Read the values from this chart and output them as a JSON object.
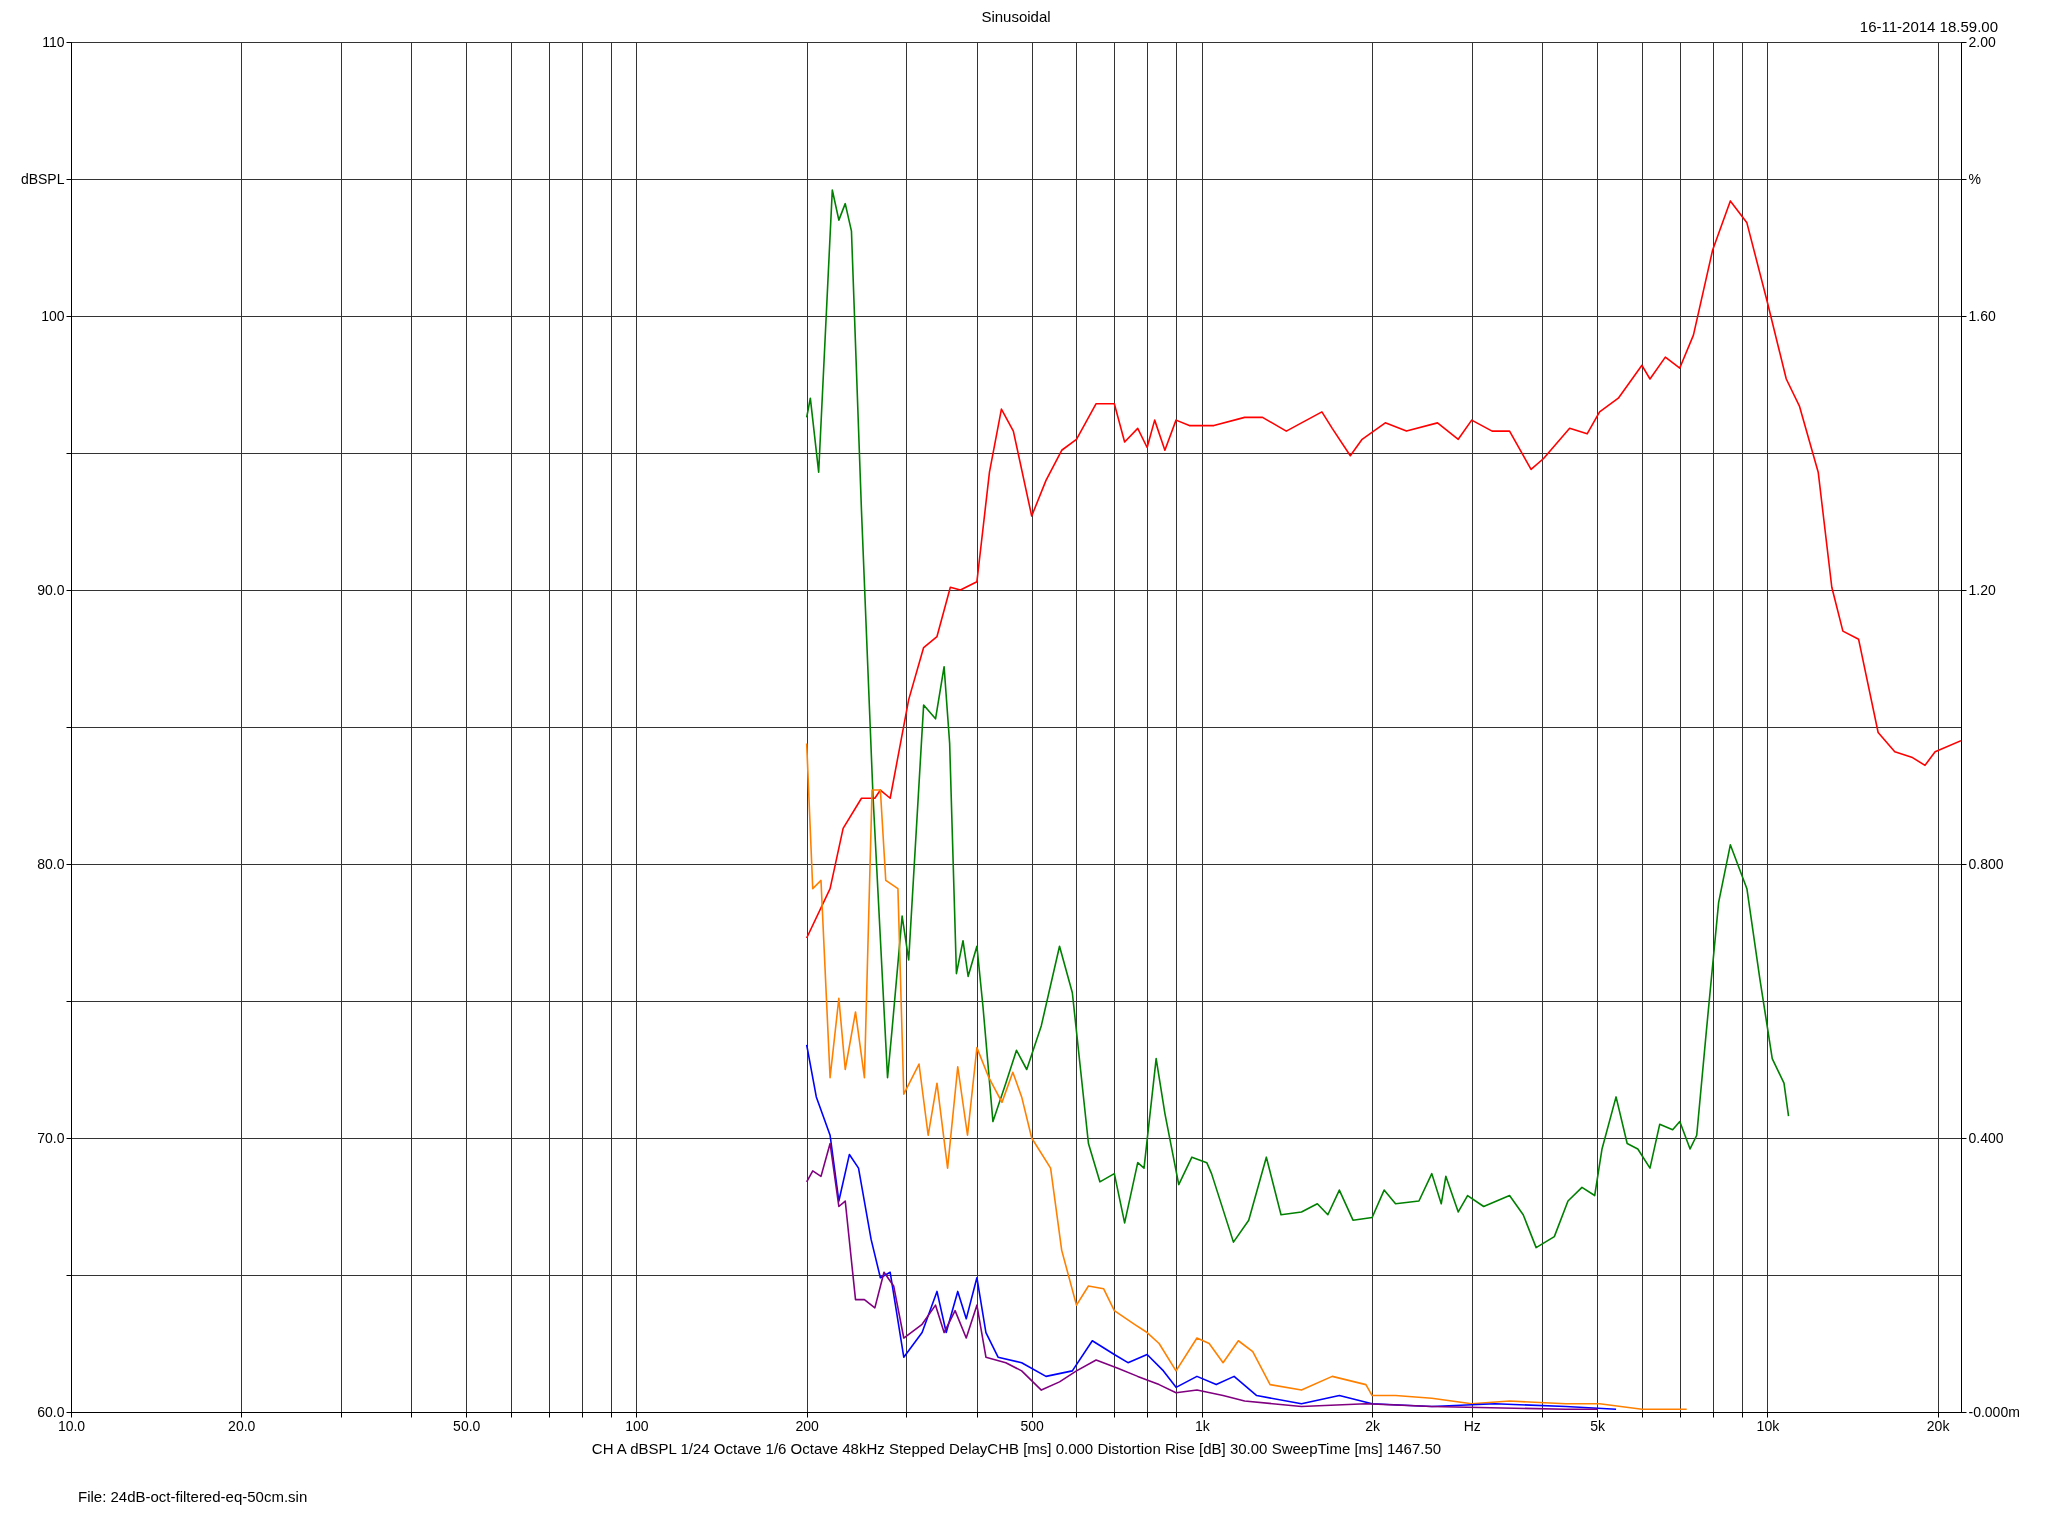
{
  "chart_data": {
    "type": "line",
    "title": "Sinusoidal",
    "xlabel": "CH A   dBSPL   1/24 Octave   1/6 Octave   48kHz   Stepped   DelayCHB [ms] 0.000   Distortion Rise [dB] 30.00   SweepTime [ms] 1467.50",
    "annotations": [
      "16-11-2014 18.59.00",
      "File: 24dB-oct-filtered-eq-50cm.sin"
    ],
    "log": "x",
    "grid": true,
    "legend": false,
    "marker": "none",
    "line_style": "solid",
    "xlim": [
      10,
      22000
    ],
    "xticks": [
      {
        "value": 10,
        "label": "10.0"
      },
      {
        "value": 20,
        "label": "20.0"
      },
      {
        "value": 30,
        "label": null
      },
      {
        "value": 40,
        "label": null
      },
      {
        "value": 50,
        "label": "50.0"
      },
      {
        "value": 60,
        "label": null
      },
      {
        "value": 70,
        "label": null
      },
      {
        "value": 80,
        "label": null
      },
      {
        "value": 90,
        "label": null
      },
      100,
      200,
      {
        "value": 300,
        "label": null
      },
      {
        "value": 400,
        "label": null
      },
      500,
      {
        "value": 600,
        "label": null
      },
      {
        "value": 700,
        "label": null
      },
      {
        "value": 800,
        "label": null
      },
      {
        "value": 900,
        "label": null
      },
      {
        "value": 1000,
        "label": "1k"
      },
      {
        "value": 2000,
        "label": "2k"
      },
      {
        "value": 3000,
        "label": "Hz"
      },
      {
        "value": 4000,
        "label": null
      },
      {
        "value": 5000,
        "label": "5k"
      },
      {
        "value": 6000,
        "label": null
      },
      {
        "value": 7000,
        "label": null
      },
      {
        "value": 8000,
        "label": null
      },
      {
        "value": 9000,
        "label": null
      },
      {
        "value": 10000,
        "label": "10k"
      },
      {
        "value": 20000,
        "label": "20k"
      }
    ],
    "ylim": [
      60,
      110
    ],
    "yticks": [
      {
        "value": 60,
        "label": "60.0"
      },
      {
        "value": 65,
        "label": null
      },
      {
        "value": 70,
        "label": "70.0"
      },
      {
        "value": 75,
        "label": null
      },
      {
        "value": 80,
        "label": "80.0"
      },
      {
        "value": 85,
        "label": null
      },
      {
        "value": 90,
        "label": "90.0"
      },
      {
        "value": 95,
        "label": null
      },
      100,
      {
        "value": 105,
        "label": "dBSPL"
      },
      110
    ],
    "y2lim": [
      0,
      2
    ],
    "y2ticks": [
      {
        "value": 0,
        "label": "-0.000m"
      },
      {
        "value": 0.4,
        "label": "0.400"
      },
      {
        "value": 0.8,
        "label": "0.800"
      },
      {
        "value": 1.2,
        "label": "1.20"
      },
      {
        "value": 1.6,
        "label": "1.60"
      },
      {
        "value": 1.8,
        "label": "%"
      },
      {
        "value": 2,
        "label": "2.00"
      }
    ],
    "series": [
      {
        "color": "#ff0000",
        "x": [
          200,
          220,
          232,
          250,
          264,
          270,
          281,
          303,
          322,
          340,
          359,
          374,
          400,
          421,
          442,
          464,
          500,
          530,
          565,
          600,
          650,
          700,
          730,
          770,
          800,
          825,
          860,
          900,
          950,
          1050,
          1190,
          1280,
          1410,
          1630,
          1700,
          1830,
          1920,
          2110,
          2300,
          2610,
          2840,
          3000,
          3260,
          3500,
          3820,
          4020,
          4470,
          4800,
          5050,
          5450,
          6000,
          6200,
          6600,
          7000,
          7400,
          8000,
          8600,
          9200,
          10000,
          10800,
          11400,
          12300,
          13000,
          13600,
          14500,
          15700,
          16800,
          18000,
          19000,
          19800,
          22000
        ],
        "values": [
          77.3,
          79.1,
          81.3,
          82.4,
          82.4,
          82.7,
          82.4,
          86.0,
          87.9,
          88.3,
          90.1,
          90.0,
          90.3,
          94.3,
          96.6,
          95.8,
          92.7,
          94.0,
          95.1,
          95.5,
          96.8,
          96.8,
          95.4,
          95.9,
          95.2,
          96.2,
          95.1,
          96.2,
          96.0,
          96.0,
          96.3,
          96.3,
          95.8,
          96.5,
          95.9,
          94.9,
          95.5,
          96.1,
          95.8,
          96.1,
          95.5,
          96.2,
          95.8,
          95.8,
          94.4,
          94.8,
          95.9,
          95.7,
          96.5,
          97.0,
          98.2,
          97.7,
          98.5,
          98.1,
          99.3,
          102.4,
          104.2,
          103.4,
          100.5,
          97.7,
          96.7,
          94.3,
          90.1,
          88.5,
          88.2,
          84.8,
          84.1,
          83.9,
          83.6,
          84.1,
          84.5
        ]
      },
      {
        "color": "#008000",
        "x": [
          200,
          203,
          210,
          222,
          228,
          234,
          240,
          250,
          262,
          278,
          283,
          295,
          303,
          322,
          338,
          350,
          358,
          368,
          378,
          386,
          400,
          410,
          427,
          450,
          470,
          490,
          520,
          560,
          590,
          630,
          660,
          700,
          730,
          770,
          790,
          830,
          860,
          910,
          960,
          1020,
          1040,
          1137,
          1210,
          1300,
          1380,
          1500,
          1600,
          1670,
          1750,
          1850,
          2000,
          2100,
          2200,
          2420,
          2550,
          2650,
          2700,
          2840,
          2950,
          3150,
          3500,
          3700,
          3900,
          4200,
          4440,
          4700,
          4950,
          5100,
          5400,
          5650,
          5900,
          6200,
          6450,
          6800,
          7000,
          7300,
          7500,
          7800,
          8200,
          8600,
          9200,
          9700,
          10200,
          10700,
          10900
        ],
        "values": [
          96.3,
          97.0,
          94.3,
          104.6,
          103.5,
          104.1,
          103.1,
          92.9,
          82.5,
          72.2,
          73.9,
          78.1,
          76.5,
          85.8,
          85.3,
          87.2,
          84.4,
          76.0,
          77.2,
          75.9,
          77.0,
          74.8,
          70.6,
          72.0,
          73.2,
          72.5,
          74.1,
          77.0,
          75.3,
          69.8,
          68.4,
          68.7,
          66.9,
          69.1,
          68.9,
          72.9,
          70.9,
          68.3,
          69.3,
          69.1,
          68.7,
          66.2,
          67.0,
          69.3,
          67.2,
          67.3,
          67.6,
          67.2,
          68.1,
          67.0,
          67.1,
          68.1,
          67.6,
          67.7,
          68.7,
          67.6,
          68.6,
          67.3,
          67.9,
          67.5,
          67.9,
          67.2,
          66.0,
          66.4,
          67.7,
          68.2,
          67.9,
          69.6,
          71.5,
          69.8,
          69.6,
          68.9,
          70.5,
          70.3,
          70.6,
          69.6,
          70.1,
          73.9,
          78.6,
          80.7,
          79.1,
          75.8,
          72.9,
          72.0,
          70.8
        ]
      },
      {
        "color": "#ff8000",
        "x": [
          200,
          205,
          212,
          220,
          228,
          234,
          244,
          253,
          261,
          270,
          276,
          290,
          297,
          316,
          328,
          340,
          355,
          370,
          385,
          400,
          420,
          443,
          463,
          480,
          500,
          540,
          565,
          600,
          630,
          670,
          700,
          760,
          800,
          840,
          900,
          980,
          1030,
          1090,
          1160,
          1230,
          1320,
          1500,
          1700,
          1950,
          2000,
          2200,
          2550,
          3000,
          3500,
          4400,
          5050,
          6000,
          7200
        ],
        "values": [
          84.4,
          79.1,
          79.4,
          72.2,
          75.1,
          72.5,
          74.6,
          72.2,
          82.7,
          82.7,
          79.4,
          79.1,
          71.6,
          72.7,
          70.1,
          72.0,
          68.9,
          72.6,
          70.1,
          73.3,
          72.2,
          71.3,
          72.4,
          71.5,
          70.0,
          68.9,
          65.9,
          63.9,
          64.6,
          64.5,
          63.7,
          63.2,
          62.9,
          62.5,
          61.5,
          62.7,
          62.5,
          61.8,
          62.6,
          62.2,
          61.0,
          60.8,
          61.3,
          61.0,
          60.6,
          60.6,
          60.5,
          60.3,
          60.4,
          60.3,
          60.3,
          60.1,
          60.1
        ]
      },
      {
        "color": "#0000ff",
        "x": [
          200,
          208,
          220,
          228,
          238,
          247,
          260,
          270,
          281,
          297,
          320,
          340,
          353,
          370,
          383,
          400,
          415,
          436,
          480,
          530,
          590,
          640,
          700,
          740,
          800,
          855,
          900,
          980,
          1060,
          1140,
          1250,
          1500,
          1750,
          2000,
          2550,
          3300,
          4400,
          5400
        ],
        "values": [
          73.4,
          71.5,
          70.1,
          67.7,
          69.4,
          68.9,
          66.3,
          64.9,
          65.1,
          62.0,
          62.9,
          64.4,
          62.9,
          64.4,
          63.4,
          64.9,
          62.9,
          62.0,
          61.8,
          61.3,
          61.5,
          62.6,
          62.1,
          61.8,
          62.1,
          61.5,
          60.9,
          61.3,
          61.0,
          61.3,
          60.6,
          60.3,
          60.6,
          60.3,
          60.2,
          60.3,
          60.2,
          60.1
        ]
      },
      {
        "color": "#800080",
        "x": [
          200,
          205,
          212,
          220,
          228,
          234,
          244,
          253,
          264,
          274,
          285,
          297,
          320,
          338,
          350,
          366,
          383,
          400,
          415,
          450,
          480,
          520,
          560,
          600,
          650,
          710,
          770,
          840,
          900,
          980,
          1090,
          1190,
          1500,
          1950,
          2550,
          4400,
          5000
        ],
        "values": [
          68.4,
          68.8,
          68.6,
          69.8,
          67.5,
          67.7,
          64.1,
          64.1,
          63.8,
          65.1,
          64.6,
          62.7,
          63.2,
          63.9,
          62.9,
          63.7,
          62.7,
          63.9,
          62.0,
          61.8,
          61.5,
          60.8,
          61.1,
          61.5,
          61.9,
          61.6,
          61.3,
          61.0,
          60.7,
          60.8,
          60.6,
          60.4,
          60.2,
          60.3,
          60.2,
          60.1,
          60.1
        ]
      }
    ]
  }
}
